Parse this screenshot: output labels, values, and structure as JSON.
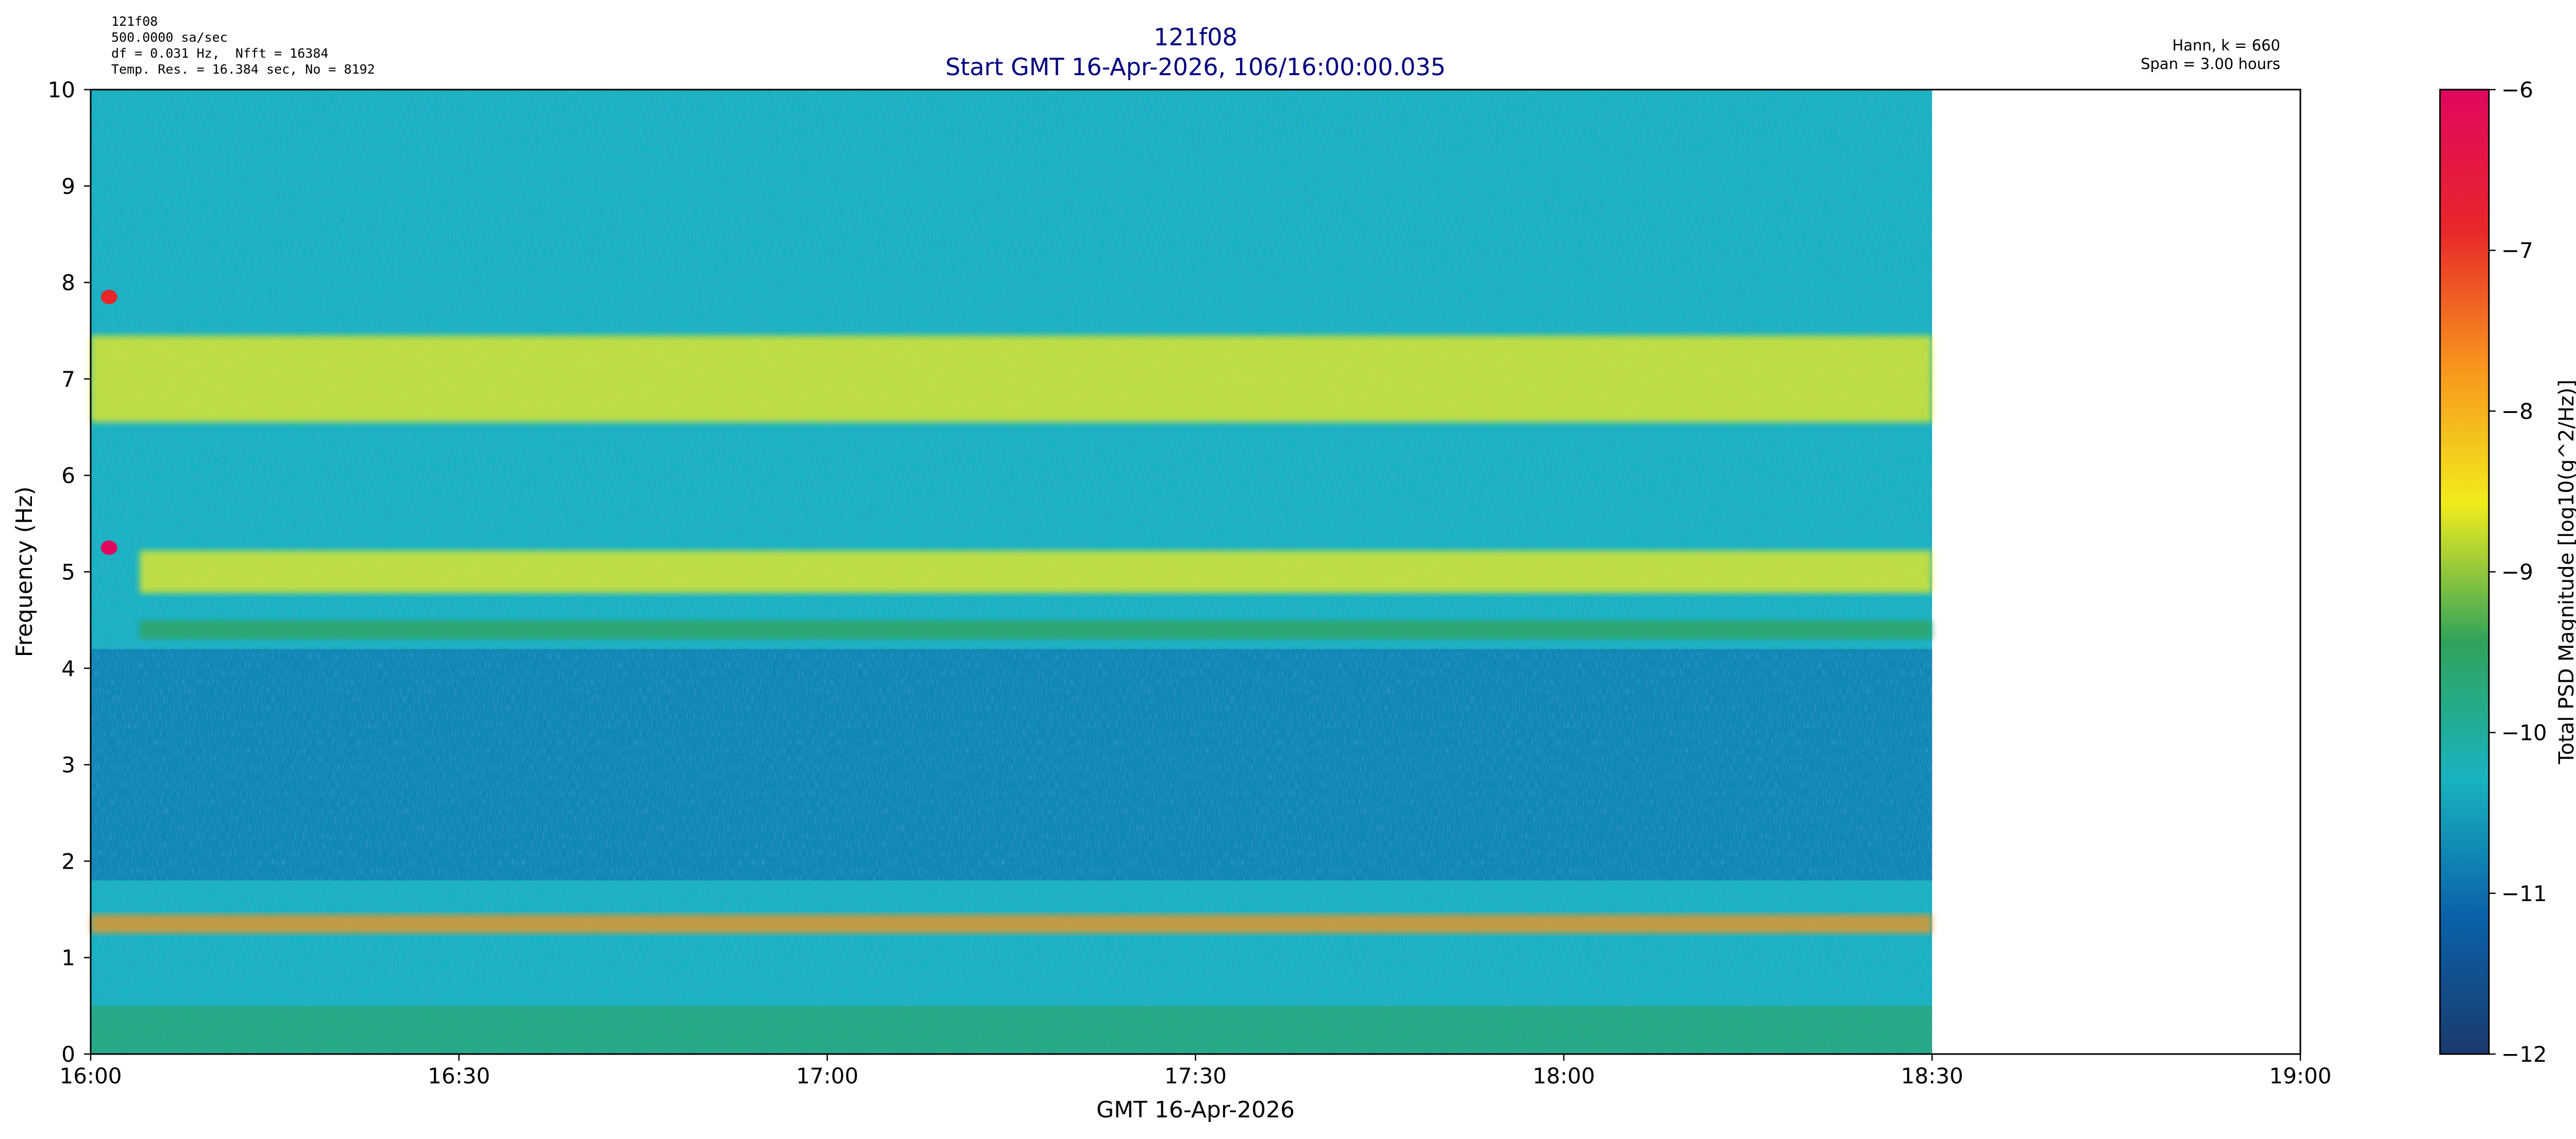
{
  "header": {
    "info_lines": [
      "121f08",
      "500.0000 sa/sec",
      "df = 0.031 Hz,  Nfft = 16384",
      "Temp. Res. = 16.384 sec, No = 8192"
    ],
    "window_lines": [
      "Hann, k = 660",
      "Span = 3.00 hours"
    ]
  },
  "chart_data": {
    "type": "heatmap",
    "title": "121f08",
    "subtitle": "Start GMT 16-Apr-2026, 106/16:00:00.035",
    "xlabel": "GMT 16-Apr-2026",
    "ylabel": "Frequency (Hz)",
    "x_ticks": [
      "16:00",
      "16:30",
      "17:00",
      "17:30",
      "18:00",
      "18:30",
      "19:00"
    ],
    "xlim_minutes": [
      0,
      180
    ],
    "data_end_minutes": 150,
    "y_ticks": [
      0,
      1,
      2,
      3,
      4,
      5,
      6,
      7,
      8,
      9,
      10
    ],
    "ylim": [
      0,
      10
    ],
    "colorbar": {
      "label": "Total PSD Magnitude [log10(g^2/Hz)]",
      "ticks": [
        -12,
        -11,
        -10,
        -9,
        -8,
        -7,
        -6
      ],
      "range": [
        -12,
        -6
      ],
      "colors": [
        "#1a3a6e",
        "#0a62a8",
        "#18b3c0",
        "#31a35a",
        "#f2ec1c",
        "#f7941d",
        "#e8262a",
        "#e0075f"
      ]
    },
    "features": [
      {
        "freq_hz": 7.0,
        "t_start_min": 0,
        "t_end_min": 150,
        "level": -8.8,
        "note_ref": "band"
      },
      {
        "freq_hz": 5.0,
        "t_start_min": 4,
        "t_end_min": 150,
        "level": -8.3
      },
      {
        "freq_hz": 1.35,
        "t_start_min": 0,
        "t_end_min": 150,
        "level": -8.0
      },
      {
        "freq_hz": 4.4,
        "t_start_min": 4,
        "t_end_min": 150,
        "level": -9.5
      },
      {
        "freq_hz": 7.85,
        "t_start_min": 1,
        "t_end_min": 2,
        "level": -7.2
      },
      {
        "freq_hz": 5.25,
        "t_start_min": 1,
        "t_end_min": 2,
        "level": -6.3
      }
    ]
  }
}
